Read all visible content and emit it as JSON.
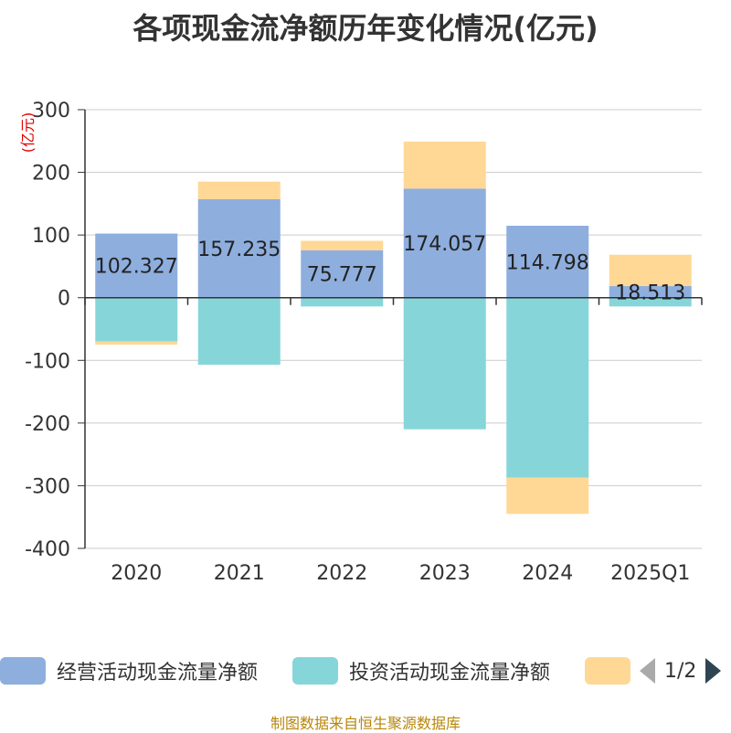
{
  "title": "各项现金流净额历年变化情况(亿元)",
  "source": "制图数据来自恒生聚源数据库",
  "pager": {
    "text": "1/2"
  },
  "colors": {
    "operating": "#8eaede",
    "investing": "#86d6d9",
    "financing": "#ffd896",
    "grid": "#cccccc",
    "axis": "#333333",
    "text": "#333333",
    "unit": "#e00000"
  },
  "chart_data": {
    "type": "bar",
    "stacked": true,
    "title": "各项现金流净额历年变化情况(亿元)",
    "ylabel": "(亿元)",
    "ylim": [
      -400,
      300
    ],
    "yticks": [
      300,
      200,
      100,
      0,
      -100,
      -200,
      -300,
      -400
    ],
    "grid": true,
    "legend_position": "bottom",
    "categories": [
      "2020",
      "2021",
      "2022",
      "2023",
      "2024",
      "2025Q1"
    ],
    "series": [
      {
        "name": "经营活动现金流量净额",
        "color": "#8eaede",
        "values": [
          102.327,
          157.235,
          75.777,
          174.057,
          114.798,
          18.513
        ]
      },
      {
        "name": "投资活动现金流量净额",
        "color": "#86d6d9",
        "values": [
          -70,
          -107,
          -14,
          -210,
          -287,
          -14
        ]
      },
      {
        "name": "",
        "color": "#ffd896",
        "values": [
          -5,
          28,
          15,
          75,
          -58,
          50
        ]
      }
    ],
    "data_labels": [
      "102.327",
      "157.235",
      "75.777",
      "174.057",
      "114.798",
      "18.513"
    ]
  }
}
